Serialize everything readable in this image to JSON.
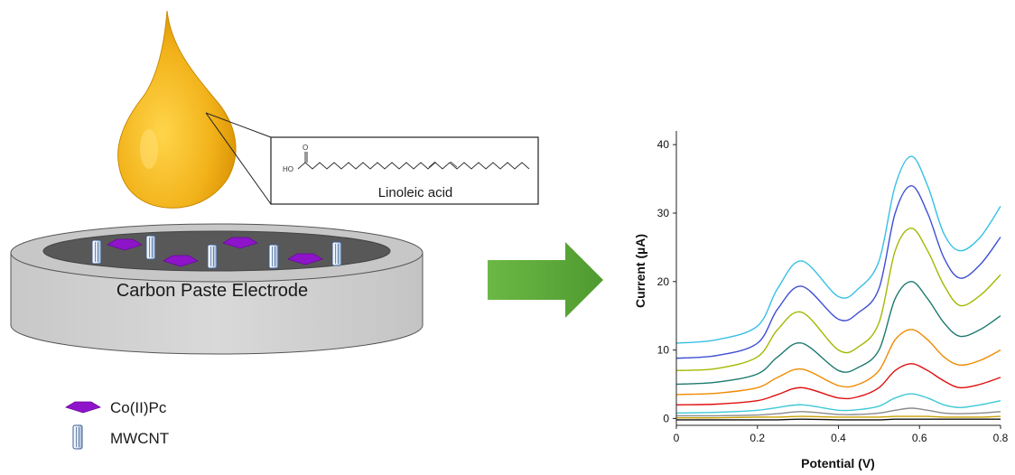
{
  "diagram": {
    "electrode_label": "Carbon Paste Electrode",
    "molecule_label": "Linoleic acid",
    "molecule_atom_ho": "HO",
    "molecule_atom_o": "O",
    "legend": [
      {
        "label": "Co(II)Pc",
        "icon": "pentagon-icon",
        "color": "#8e14c9"
      },
      {
        "label": "MWCNT",
        "icon": "nanotube-icon",
        "color": "#4a6fa5"
      }
    ],
    "colors": {
      "drop": "#f2b21a",
      "arrow": "#5aa33a",
      "electrode": "#d4d4d4"
    }
  },
  "chart_data": {
    "type": "line",
    "xlabel": "Potential (V)",
    "ylabel": "Current (µA)",
    "xlim": [
      0,
      0.8
    ],
    "ylim": [
      -1,
      42
    ],
    "xticks": [
      "0",
      "0.2",
      "0.4",
      "0.6",
      "0.8"
    ],
    "yticks": [
      "0",
      "10",
      "20",
      "30",
      "40"
    ],
    "grid": false,
    "legend": "none",
    "x": [
      0,
      0.1,
      0.2,
      0.25,
      0.31,
      0.4,
      0.45,
      0.5,
      0.54,
      0.58,
      0.62,
      0.66,
      0.7,
      0.75,
      0.8
    ],
    "series": [
      {
        "color": "#111111",
        "values": [
          -0.2,
          -0.2,
          -0.2,
          -0.2,
          -0.1,
          -0.2,
          -0.2,
          -0.2,
          -0.1,
          -0.1,
          -0.1,
          -0.1,
          -0.1,
          -0.1,
          -0.1
        ]
      },
      {
        "color": "#c8a000",
        "values": [
          0.1,
          0.1,
          0.2,
          0.2,
          0.3,
          0.2,
          0.2,
          0.2,
          0.3,
          0.3,
          0.3,
          0.2,
          0.2,
          0.2,
          0.3
        ]
      },
      {
        "color": "#8a8a8a",
        "values": [
          0.4,
          0.4,
          0.5,
          0.7,
          1.0,
          0.6,
          0.6,
          0.8,
          1.2,
          1.5,
          1.2,
          0.8,
          0.7,
          0.8,
          1.0
        ]
      },
      {
        "color": "#3ec9d6",
        "values": [
          0.8,
          0.9,
          1.2,
          1.6,
          2.0,
          1.2,
          1.3,
          1.8,
          3.0,
          3.6,
          3.0,
          2.0,
          1.6,
          2.0,
          2.6
        ]
      },
      {
        "color": "#e01010",
        "values": [
          2.0,
          2.1,
          2.6,
          3.5,
          4.5,
          3.0,
          3.2,
          4.5,
          7.0,
          8.0,
          7.0,
          5.5,
          4.5,
          5.0,
          6.0
        ]
      },
      {
        "color": "#f08a00",
        "values": [
          3.5,
          3.7,
          4.5,
          6.0,
          7.2,
          4.8,
          5.0,
          7.0,
          11.5,
          13.0,
          11.5,
          9.0,
          7.8,
          8.5,
          10.0
        ]
      },
      {
        "color": "#1c7a6e",
        "values": [
          5.0,
          5.3,
          6.5,
          9.0,
          11.0,
          7.0,
          7.5,
          10.0,
          17.5,
          20.0,
          17.5,
          14.0,
          12.0,
          13.0,
          15.0
        ]
      },
      {
        "color": "#a4b800",
        "values": [
          7.0,
          7.3,
          9.0,
          13.0,
          15.5,
          10.0,
          10.5,
          14.0,
          24.5,
          27.8,
          24.5,
          19.5,
          16.5,
          18.0,
          21.0
        ]
      },
      {
        "color": "#3e4fd6",
        "values": [
          8.8,
          9.2,
          11.0,
          16.0,
          19.3,
          14.5,
          15.5,
          19.0,
          30.0,
          34.0,
          30.0,
          23.5,
          20.5,
          22.5,
          26.5
        ]
      },
      {
        "color": "#38c0e6",
        "values": [
          11.0,
          11.5,
          13.5,
          19.0,
          23.0,
          17.8,
          19.0,
          23.0,
          34.0,
          38.3,
          34.0,
          27.0,
          24.5,
          26.5,
          31.0
        ]
      }
    ]
  }
}
